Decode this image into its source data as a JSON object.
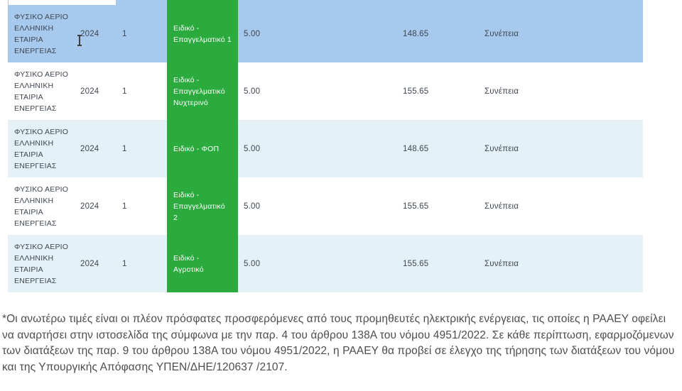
{
  "table": {
    "rows": [
      {
        "provider": "ΦΥΣΙΚΟ ΑΕΡΙΟ\nΕΛΛΗΝΙΚΗ\nΕΤΑΙΡΙΑ\nΕΝΕΡΓΕΙΑΣ",
        "year": "2024",
        "month": "1",
        "tariff": "Ειδικό -\nΕπαγγελματικό 1",
        "fixed_charge": "5.00",
        "price": "148.65",
        "status": "Συνέπεια"
      },
      {
        "provider": "ΦΥΣΙΚΟ ΑΕΡΙΟ\nΕΛΛΗΝΙΚΗ\nΕΤΑΙΡΙΑ\nΕΝΕΡΓΕΙΑΣ",
        "year": "2024",
        "month": "1",
        "tariff": "Ειδικό -\nΕπαγγελματικό\nΝυχτερινό",
        "fixed_charge": "5.00",
        "price": "155.65",
        "status": "Συνέπεια"
      },
      {
        "provider": "ΦΥΣΙΚΟ ΑΕΡΙΟ\nΕΛΛΗΝΙΚΗ\nΕΤΑΙΡΙΑ\nΕΝΕΡΓΕΙΑΣ",
        "year": "2024",
        "month": "1",
        "tariff": "Ειδικό - ΦΟΠ",
        "fixed_charge": "5.00",
        "price": "148.65",
        "status": "Συνέπεια"
      },
      {
        "provider": "ΦΥΣΙΚΟ ΑΕΡΙΟ\nΕΛΛΗΝΙΚΗ\nΕΤΑΙΡΙΑ\nΕΝΕΡΓΕΙΑΣ",
        "year": "2024",
        "month": "1",
        "tariff": "Ειδικό -\nΕπαγγελματικό\n2",
        "fixed_charge": "5.00",
        "price": "155.65",
        "status": "Συνέπεια"
      },
      {
        "provider": "ΦΥΣΙΚΟ ΑΕΡΙΟ\nΕΛΛΗΝΙΚΗ\nΕΤΑΙΡΙΑ\nΕΝΕΡΓΕΙΑΣ",
        "year": "2024",
        "month": "1",
        "tariff": "Ειδικό -\nΑγροτικό",
        "fixed_charge": "5.00",
        "price": "155.65",
        "status": "Συνέπεια"
      }
    ]
  },
  "footnote": "*Οι ανωτέρω τιμές είναι οι πλέον πρόσφατες προσφερόμενες από τους προμηθευτές ηλεκτρικής ενέργειας, τις οποίες η ΡΑΑΕΥ οφείλει να αναρτήσει στην ιστοσελίδα της σύμφωνα με την παρ. 4 του άρθρου 138Α του νόμου 4951/2022. Σε κάθε περίπτωση, εφαρμοζόμενων των διατάξεων της παρ. 9 του άρθρου 138Α του νόμου 4951/2022, η ΡΑΑΕΥ θα προβεί σε έλεγχο της τήρησης των διατάξεων του νόμου και της Υπουργικής Απόφασης ΥΠΕΝ/ΔΗΕ/120637 /2107.",
  "colors": {
    "row_highlight": "#a7c9ee",
    "row_alternate": "#e4f1f6",
    "tariff_green": "#2baa3d",
    "table_text": "#3d4650",
    "footnote_text": "#4d4d4d"
  }
}
